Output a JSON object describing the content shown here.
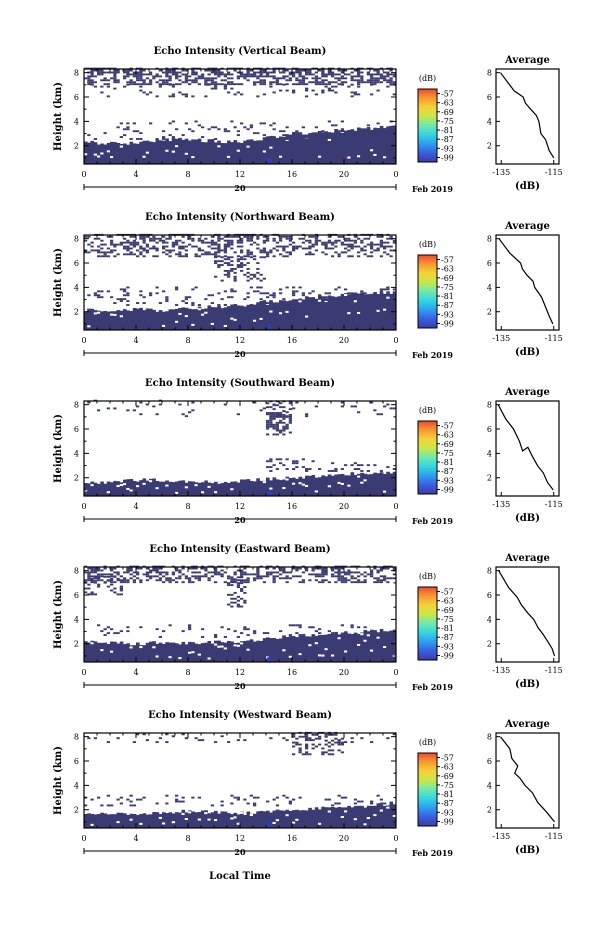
{
  "figure": {
    "shared_xlabel": "Local Time",
    "date_label": "20",
    "month_label": "Feb 2019",
    "cbar_unit": "(dB)",
    "avg_title": "Average",
    "avg_xlabel": "(dB)",
    "ylabel": "Height (km)"
  },
  "colors": {
    "echo": "#3b3b74",
    "echo_strong": "#2b3bd0",
    "colorbar": [
      "#3c3ca6",
      "#3a5ee0",
      "#2e9ef0",
      "#33d6e0",
      "#6fe8b0",
      "#c8e84a",
      "#f5d23a",
      "#f59a32",
      "#ef4a2e"
    ]
  },
  "chart_data": [
    {
      "type": "heatmap",
      "title": "Echo Intensity (Vertical Beam)",
      "xticks": [
        "0",
        "4",
        "8",
        "12",
        "16",
        "20",
        "0"
      ],
      "xlim": [
        0,
        24
      ],
      "yticks": [
        "2",
        "4",
        "6",
        "8"
      ],
      "ylim": [
        0.5,
        8.3
      ],
      "cbar_ticks": [
        "-57",
        "-63",
        "-69",
        "-75",
        "-81",
        "-87",
        "-93",
        "-99"
      ],
      "cbar_range": [
        -99,
        -57
      ],
      "dense_top_km": [
        2.3,
        2.2,
        2.2,
        2.5,
        2.5,
        2.4,
        2.3,
        2.6,
        3.0,
        3.1,
        3.3,
        3.4,
        3.6
      ],
      "noise_regions": [
        {
          "x": [
            0,
            24
          ],
          "y": [
            7.0,
            8.3
          ],
          "density": 0.55
        },
        {
          "x": [
            0,
            24
          ],
          "y": [
            6.0,
            7.0
          ],
          "density": 0.12
        },
        {
          "x": [
            0,
            24
          ],
          "y": [
            2.5,
            4.0
          ],
          "density": 0.1
        }
      ],
      "avg": {
        "x": [
          -135,
          -130,
          -127,
          -126,
          -124,
          -122,
          -121,
          -120,
          -118,
          -117,
          -115
        ],
        "y": [
          8.0,
          6.5,
          6.0,
          5.5,
          5.0,
          4.5,
          4.0,
          3.0,
          2.5,
          1.6,
          1.0
        ],
        "xticks": [
          "-135",
          "-115"
        ],
        "xlim": [
          -137,
          -113
        ],
        "yticks": [
          "2",
          "4",
          "6",
          "8"
        ]
      }
    },
    {
      "type": "heatmap",
      "title": "Echo Intensity (Northward Beam)",
      "xticks": [
        "0",
        "4",
        "8",
        "12",
        "16",
        "20",
        "0"
      ],
      "xlim": [
        0,
        24
      ],
      "yticks": [
        "2",
        "4",
        "6",
        "8"
      ],
      "ylim": [
        0.5,
        8.3
      ],
      "cbar_ticks": [
        "-57",
        "-63",
        "-69",
        "-75",
        "-81",
        "-87",
        "-93",
        "-99"
      ],
      "cbar_range": [
        -99,
        -57
      ],
      "dense_top_km": [
        2.2,
        2.0,
        2.2,
        2.1,
        2.3,
        2.4,
        2.5,
        2.8,
        3.0,
        3.2,
        3.4,
        3.5,
        3.6
      ],
      "noise_regions": [
        {
          "x": [
            0,
            24
          ],
          "y": [
            6.5,
            8.3
          ],
          "density": 0.4
        },
        {
          "x": [
            10,
            14
          ],
          "y": [
            4.5,
            6.5
          ],
          "density": 0.3
        },
        {
          "x": [
            0,
            24
          ],
          "y": [
            2.5,
            4.0
          ],
          "density": 0.15
        }
      ],
      "avg": {
        "x": [
          -136,
          -132,
          -128,
          -127,
          -125,
          -123,
          -122,
          -120,
          -118,
          -117,
          -115
        ],
        "y": [
          8.0,
          6.8,
          6.0,
          5.5,
          5.0,
          4.5,
          4.0,
          3.2,
          2.5,
          1.7,
          1.0
        ],
        "xticks": [
          "-135",
          "-115"
        ],
        "xlim": [
          -137,
          -113
        ],
        "yticks": [
          "2",
          "4",
          "6",
          "8"
        ]
      }
    },
    {
      "type": "heatmap",
      "title": "Echo Intensity (Southward Beam)",
      "xticks": [
        "0",
        "4",
        "8",
        "12",
        "16",
        "20",
        "0"
      ],
      "xlim": [
        0,
        24
      ],
      "yticks": [
        "2",
        "4",
        "6",
        "8"
      ],
      "ylim": [
        0.5,
        8.3
      ],
      "cbar_ticks": [
        "-57",
        "-63",
        "-69",
        "-75",
        "-81",
        "-87",
        "-93",
        "-99"
      ],
      "cbar_range": [
        -99,
        -57
      ],
      "dense_top_km": [
        1.7,
        1.6,
        1.8,
        1.8,
        1.7,
        1.6,
        1.7,
        1.9,
        2.0,
        2.1,
        2.3,
        2.4,
        2.4
      ],
      "noise_regions": [
        {
          "x": [
            14,
            16
          ],
          "y": [
            5.5,
            8.3
          ],
          "density": 0.45
        },
        {
          "x": [
            0,
            24
          ],
          "y": [
            7.0,
            8.3
          ],
          "density": 0.05
        },
        {
          "x": [
            14,
            18
          ],
          "y": [
            2.5,
            3.6
          ],
          "density": 0.3
        },
        {
          "x": [
            18,
            24
          ],
          "y": [
            2.5,
            3.2
          ],
          "density": 0.15
        }
      ],
      "avg": {
        "x": [
          -136,
          -133,
          -130,
          -128,
          -127,
          -125,
          -123,
          -121,
          -119,
          -117,
          -115
        ],
        "y": [
          8.0,
          6.8,
          6.0,
          5.0,
          4.2,
          4.5,
          3.8,
          3.0,
          2.4,
          1.6,
          1.0
        ],
        "xticks": [
          "-135",
          "-115"
        ],
        "xlim": [
          -137,
          -113
        ],
        "yticks": [
          "2",
          "4",
          "6",
          "8"
        ]
      }
    },
    {
      "type": "heatmap",
      "title": "Echo Intensity (Eastward Beam)",
      "xticks": [
        "0",
        "4",
        "8",
        "12",
        "16",
        "20",
        "0"
      ],
      "xlim": [
        0,
        24
      ],
      "yticks": [
        "2",
        "4",
        "6",
        "8"
      ],
      "ylim": [
        0.5,
        8.3
      ],
      "cbar_ticks": [
        "-57",
        "-63",
        "-69",
        "-75",
        "-81",
        "-87",
        "-93",
        "-99"
      ],
      "cbar_range": [
        -99,
        -57
      ],
      "dense_top_km": [
        2.2,
        2.1,
        2.0,
        2.1,
        2.0,
        2.1,
        2.2,
        2.4,
        2.6,
        2.8,
        2.9,
        3.0,
        3.2
      ],
      "noise_regions": [
        {
          "x": [
            0,
            24
          ],
          "y": [
            7.0,
            8.3
          ],
          "density": 0.45
        },
        {
          "x": [
            0,
            3
          ],
          "y": [
            6.0,
            7.5
          ],
          "density": 0.3
        },
        {
          "x": [
            11,
            12.5
          ],
          "y": [
            5.0,
            7.5
          ],
          "density": 0.35
        },
        {
          "x": [
            0,
            24
          ],
          "y": [
            2.5,
            3.5
          ],
          "density": 0.12
        }
      ],
      "avg": {
        "x": [
          -136,
          -132,
          -129,
          -127,
          -125,
          -123,
          -121,
          -119,
          -118,
          -116,
          -115
        ],
        "y": [
          8.0,
          6.6,
          5.8,
          5.2,
          4.5,
          4.0,
          3.3,
          2.8,
          2.3,
          1.6,
          1.0
        ],
        "xticks": [
          "-135",
          "-115"
        ],
        "xlim": [
          -137,
          -113
        ],
        "yticks": [
          "2",
          "4",
          "6",
          "8"
        ]
      }
    },
    {
      "type": "heatmap",
      "title": "Echo Intensity (Westward Beam)",
      "xticks": [
        "0",
        "4",
        "8",
        "12",
        "16",
        "20",
        "0"
      ],
      "xlim": [
        0,
        24
      ],
      "yticks": [
        "2",
        "4",
        "6",
        "8"
      ],
      "ylim": [
        0.5,
        8.3
      ],
      "cbar_ticks": [
        "-57",
        "-63",
        "-69",
        "-75",
        "-81",
        "-87",
        "-93",
        "-99"
      ],
      "cbar_range": [
        -99,
        -57
      ],
      "dense_top_km": [
        1.8,
        1.7,
        1.6,
        1.8,
        1.9,
        1.8,
        1.7,
        1.8,
        2.0,
        2.1,
        2.2,
        2.3,
        2.6
      ],
      "noise_regions": [
        {
          "x": [
            16,
            20
          ],
          "y": [
            6.5,
            8.3
          ],
          "density": 0.35
        },
        {
          "x": [
            0,
            24
          ],
          "y": [
            7.5,
            8.3
          ],
          "density": 0.08
        },
        {
          "x": [
            0,
            24
          ],
          "y": [
            2.3,
            3.2
          ],
          "density": 0.12
        }
      ],
      "avg": {
        "x": [
          -135,
          -132,
          -131,
          -129,
          -130,
          -128,
          -126,
          -123,
          -121,
          -118,
          -115
        ],
        "y": [
          8.0,
          7.0,
          6.2,
          5.6,
          5.0,
          4.6,
          4.0,
          3.4,
          2.6,
          1.8,
          1.0
        ],
        "xticks": [
          "-135",
          "-115"
        ],
        "xlim": [
          -137,
          -113
        ],
        "yticks": [
          "2",
          "4",
          "6",
          "8"
        ]
      }
    }
  ]
}
